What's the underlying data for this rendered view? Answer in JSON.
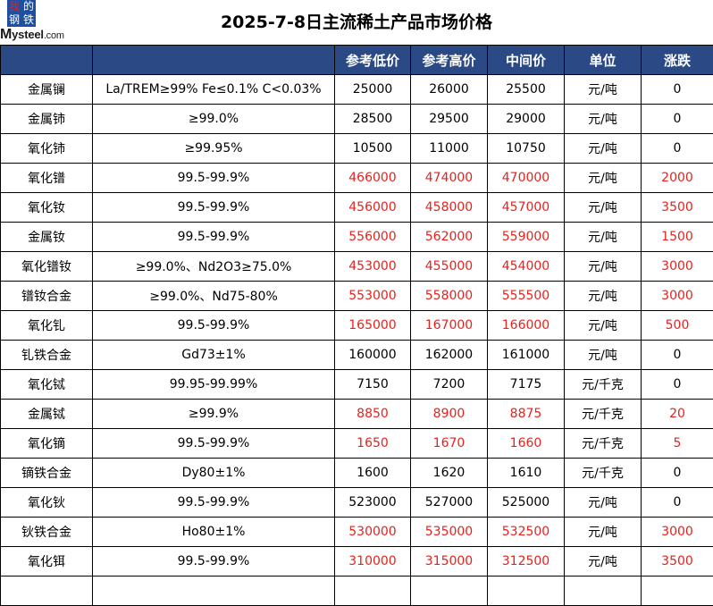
{
  "logo": {
    "chars": [
      "我",
      "的",
      "钢",
      "铁"
    ],
    "brand_main": "ysteel",
    "brand_initial": "M",
    "brand_domain": ".com"
  },
  "title": "2025-7-8日主流稀土产品市场价格",
  "colors": {
    "header_bg": "#2b4a85",
    "up": "#e8211d"
  },
  "table": {
    "headers": [
      "",
      "",
      "参考低价",
      "参考高价",
      "中间价",
      "单位",
      "涨跌"
    ],
    "rows": [
      {
        "name": "金属镧",
        "spec": "La/TREM≥99% Fe≤0.1% C<0.03%",
        "low": "25000",
        "high": "26000",
        "mid": "25500",
        "unit": "元/吨",
        "change": "0",
        "up": false
      },
      {
        "name": "金属铈",
        "spec": "≥99.0%",
        "low": "28500",
        "high": "29500",
        "mid": "29000",
        "unit": "元/吨",
        "change": "0",
        "up": false
      },
      {
        "name": "氧化铈",
        "spec": "≥99.95%",
        "low": "10500",
        "high": "11000",
        "mid": "10750",
        "unit": "元/吨",
        "change": "0",
        "up": false
      },
      {
        "name": "氧化镨",
        "spec": "99.5-99.9%",
        "low": "466000",
        "high": "474000",
        "mid": "470000",
        "unit": "元/吨",
        "change": "2000",
        "up": true
      },
      {
        "name": "氧化钕",
        "spec": "99.5-99.9%",
        "low": "456000",
        "high": "458000",
        "mid": "457000",
        "unit": "元/吨",
        "change": "3500",
        "up": true
      },
      {
        "name": "金属钕",
        "spec": "99.5-99.9%",
        "low": "556000",
        "high": "562000",
        "mid": "559000",
        "unit": "元/吨",
        "change": "1500",
        "up": true
      },
      {
        "name": "氧化镨钕",
        "spec": "≥99.0%、Nd2O3≥75.0%",
        "low": "453000",
        "high": "455000",
        "mid": "454000",
        "unit": "元/吨",
        "change": "3000",
        "up": true
      },
      {
        "name": "镨钕合金",
        "spec": "≥99.0%、Nd75-80%",
        "low": "553000",
        "high": "558000",
        "mid": "555500",
        "unit": "元/吨",
        "change": "3000",
        "up": true
      },
      {
        "name": "氧化钆",
        "spec": "99.5-99.9%",
        "low": "165000",
        "high": "167000",
        "mid": "166000",
        "unit": "元/吨",
        "change": "500",
        "up": true
      },
      {
        "name": "钆铁合金",
        "spec": "Gd73±1%",
        "low": "160000",
        "high": "162000",
        "mid": "161000",
        "unit": "元/吨",
        "change": "0",
        "up": false
      },
      {
        "name": "氧化铽",
        "spec": "99.95-99.99%",
        "low": "7150",
        "high": "7200",
        "mid": "7175",
        "unit": "元/千克",
        "change": "0",
        "up": false
      },
      {
        "name": "金属铽",
        "spec": "≥99.9%",
        "low": "8850",
        "high": "8900",
        "mid": "8875",
        "unit": "元/千克",
        "change": "20",
        "up": true
      },
      {
        "name": "氧化镝",
        "spec": "99.5-99.9%",
        "low": "1650",
        "high": "1670",
        "mid": "1660",
        "unit": "元/千克",
        "change": "5",
        "up": true
      },
      {
        "name": "镝铁合金",
        "spec": "Dy80±1%",
        "low": "1600",
        "high": "1620",
        "mid": "1610",
        "unit": "元/千克",
        "change": "0",
        "up": false
      },
      {
        "name": "氧化钬",
        "spec": "99.5-99.9%",
        "low": "523000",
        "high": "527000",
        "mid": "525000",
        "unit": "元/吨",
        "change": "0",
        "up": false
      },
      {
        "name": "钬铁合金",
        "spec": "Ho80±1%",
        "low": "530000",
        "high": "535000",
        "mid": "532500",
        "unit": "元/吨",
        "change": "3000",
        "up": true
      },
      {
        "name": "氧化铒",
        "spec": "99.5-99.9%",
        "low": "310000",
        "high": "315000",
        "mid": "312500",
        "unit": "元/吨",
        "change": "3500",
        "up": true
      },
      {
        "name": "",
        "spec": "",
        "low": "",
        "high": "",
        "mid": "",
        "unit": "",
        "change": "",
        "up": false
      }
    ]
  }
}
